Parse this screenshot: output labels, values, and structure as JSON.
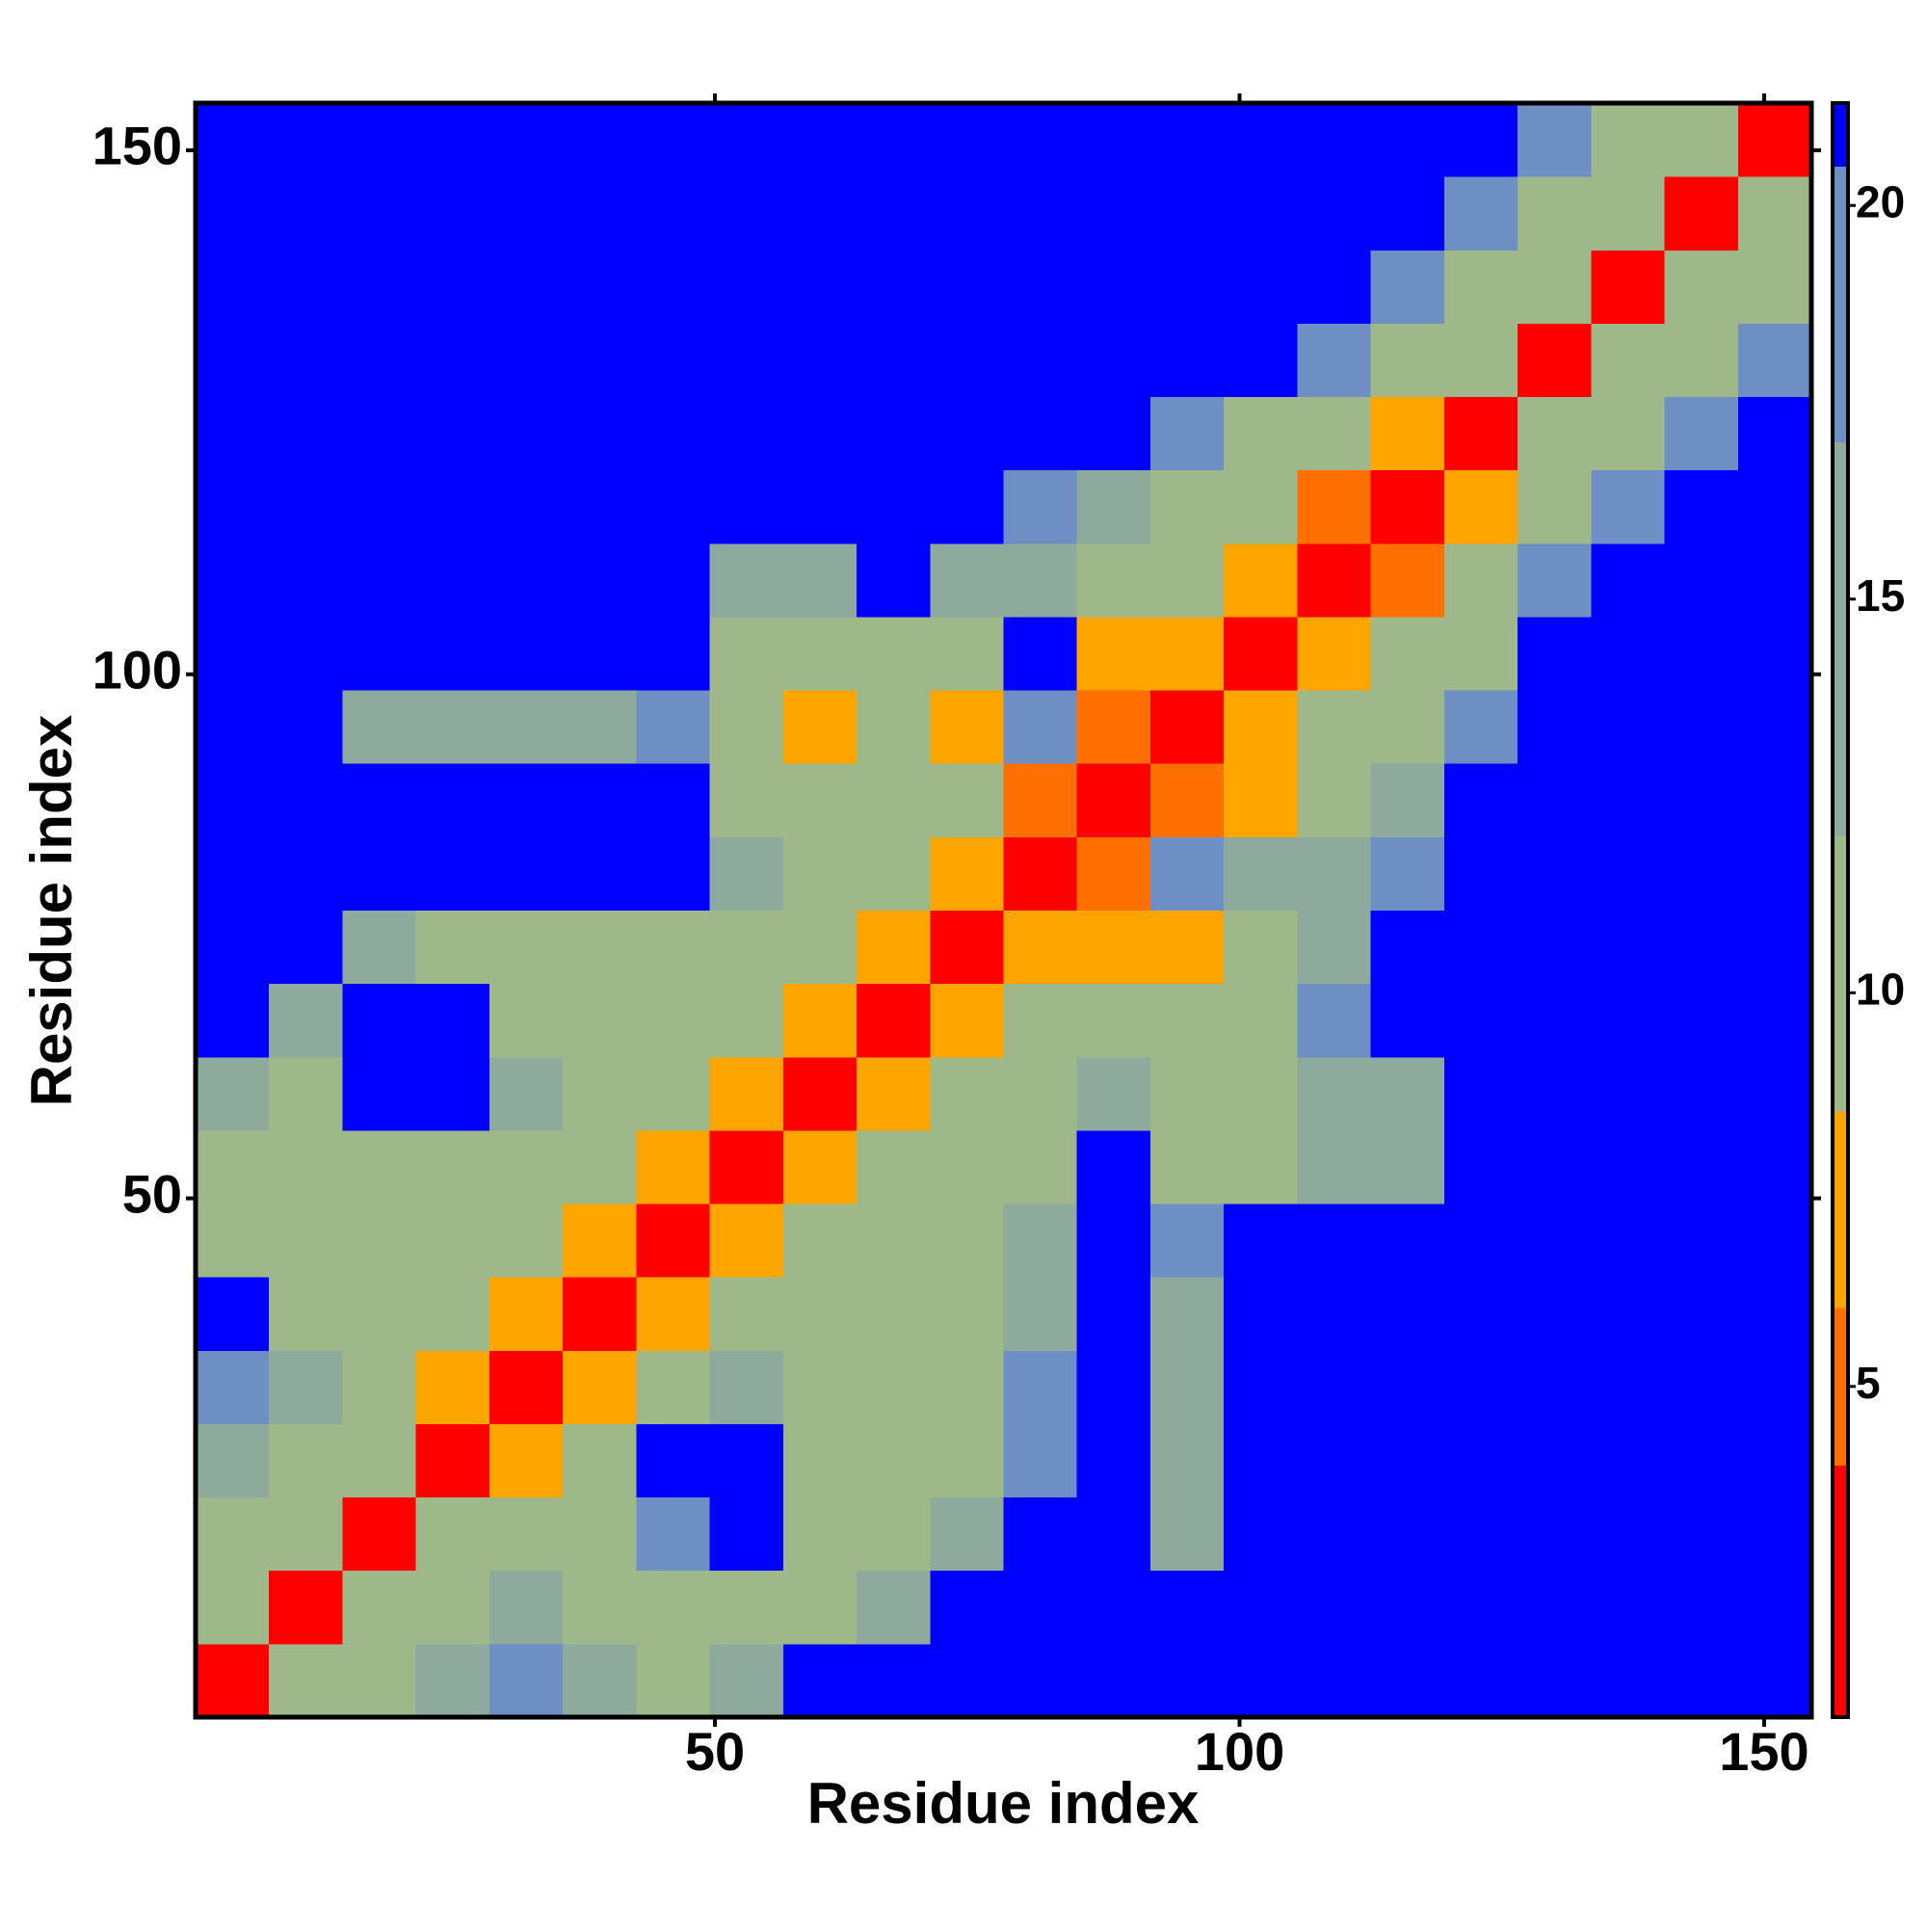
{
  "chart_data": {
    "type": "heatmap",
    "xlabel": "Residue index",
    "ylabel": "Residue index",
    "xlim": [
      0.5,
      154.5
    ],
    "ylim": [
      0.5,
      154.5
    ],
    "xticks": [
      50,
      100,
      150
    ],
    "yticks": [
      50,
      100,
      150
    ],
    "x_edges": [
      0.5,
      7.5,
      14.5,
      21.5,
      28.5,
      35.5,
      42.5,
      49.5,
      56.5,
      63.5,
      70.5,
      77.5,
      84.5,
      91.5,
      98.5,
      105.5,
      112.5,
      119.5,
      126.5,
      133.5,
      140.5,
      147.5,
      154.5
    ],
    "y_edges": [
      0.5,
      7.5,
      14.5,
      21.5,
      28.5,
      35.5,
      42.5,
      49.5,
      56.5,
      63.5,
      70.5,
      77.5,
      84.5,
      91.5,
      98.5,
      105.5,
      112.5,
      119.5,
      126.5,
      133.5,
      140.5,
      147.5,
      154.5
    ],
    "z": [
      [
        2,
        9,
        11,
        14,
        18,
        14,
        11,
        14,
        21,
        21,
        21,
        21,
        21,
        21,
        21,
        21,
        21,
        21,
        21,
        21,
        21,
        21
      ],
      [
        9,
        2,
        9,
        11,
        14,
        11,
        9,
        11,
        12,
        14,
        21,
        21,
        21,
        21,
        21,
        21,
        21,
        21,
        21,
        21,
        21,
        21
      ],
      [
        11,
        9,
        2,
        9,
        11,
        9,
        18,
        21,
        11,
        11,
        14,
        21,
        21,
        14,
        21,
        21,
        21,
        21,
        21,
        21,
        21,
        21
      ],
      [
        14,
        11,
        9,
        2,
        7,
        9,
        21,
        21,
        11,
        11,
        12,
        18,
        21,
        14,
        21,
        21,
        21,
        21,
        21,
        21,
        21,
        21
      ],
      [
        18,
        14,
        11,
        7,
        2,
        7,
        11,
        14,
        9,
        9,
        12,
        18,
        21,
        14,
        21,
        21,
        21,
        21,
        21,
        21,
        21,
        21
      ],
      [
        21,
        12,
        11,
        9,
        7,
        2,
        7,
        11,
        9,
        9,
        11,
        14,
        21,
        14,
        21,
        21,
        21,
        21,
        21,
        21,
        21,
        21
      ],
      [
        12,
        11,
        9,
        11,
        9,
        7,
        2,
        7,
        11,
        11,
        11,
        14,
        21,
        18,
        21,
        21,
        21,
        21,
        21,
        21,
        21,
        21
      ],
      [
        12,
        11,
        11,
        11,
        9,
        9,
        7,
        2,
        7,
        11,
        11,
        12,
        21,
        11,
        12,
        14,
        14,
        21,
        21,
        21,
        21,
        21
      ],
      [
        14,
        12,
        21,
        21,
        14,
        11,
        11,
        7,
        2,
        7,
        9,
        11,
        14,
        9,
        12,
        14,
        14,
        21,
        21,
        21,
        21,
        21
      ],
      [
        21,
        14,
        21,
        21,
        9,
        9,
        11,
        11,
        7,
        2,
        7,
        9,
        11,
        9,
        12,
        18,
        21,
        21,
        21,
        21,
        21,
        21
      ],
      [
        21,
        21,
        14,
        12,
        11,
        11,
        12,
        11,
        9,
        7,
        2,
        7,
        7,
        7,
        11,
        14,
        21,
        21,
        21,
        21,
        21,
        21
      ],
      [
        21,
        21,
        21,
        21,
        21,
        21,
        21,
        14,
        12,
        9,
        7,
        2,
        5,
        18,
        14,
        14,
        18,
        21,
        21,
        21,
        21,
        21
      ],
      [
        21,
        21,
        21,
        21,
        21,
        21,
        21,
        11,
        11,
        11,
        11,
        5,
        2,
        5,
        7,
        11,
        14,
        21,
        21,
        21,
        21,
        21
      ],
      [
        21,
        21,
        14,
        14,
        14,
        14,
        18,
        11,
        7,
        11,
        7,
        18,
        5,
        2,
        7,
        9,
        11,
        18,
        21,
        21,
        21,
        21
      ],
      [
        21,
        21,
        21,
        21,
        21,
        21,
        21,
        12,
        11,
        12,
        12,
        21,
        7,
        7,
        2,
        7,
        9,
        12,
        21,
        21,
        21,
        21
      ],
      [
        21,
        21,
        21,
        21,
        21,
        21,
        21,
        14,
        14,
        21,
        14,
        14,
        11,
        9,
        7,
        2,
        5,
        11,
        18,
        21,
        21,
        21
      ],
      [
        21,
        21,
        21,
        21,
        21,
        21,
        21,
        21,
        21,
        21,
        21,
        18,
        14,
        11,
        9,
        5,
        2,
        7,
        11,
        18,
        21,
        21
      ],
      [
        21,
        21,
        21,
        21,
        21,
        21,
        21,
        21,
        21,
        21,
        21,
        21,
        21,
        18,
        12,
        11,
        7,
        2,
        9,
        11,
        18,
        21
      ],
      [
        21,
        21,
        21,
        21,
        21,
        21,
        21,
        21,
        21,
        21,
        21,
        21,
        21,
        21,
        21,
        18,
        11,
        9,
        2,
        9,
        11,
        18
      ],
      [
        21,
        21,
        21,
        21,
        21,
        21,
        21,
        21,
        21,
        21,
        21,
        21,
        21,
        21,
        21,
        21,
        18,
        11,
        9,
        2,
        9,
        11
      ],
      [
        21,
        21,
        21,
        21,
        21,
        21,
        21,
        21,
        21,
        21,
        21,
        21,
        21,
        21,
        21,
        21,
        21,
        18,
        11,
        9,
        2,
        9
      ],
      [
        21,
        21,
        21,
        21,
        21,
        21,
        21,
        21,
        21,
        21,
        21,
        21,
        21,
        21,
        21,
        21,
        21,
        21,
        18,
        11,
        9,
        2
      ]
    ],
    "colorbar": {
      "lim": [
        0.8,
        21.3
      ],
      "ticks": [
        5,
        10,
        15,
        20
      ],
      "bounds": [
        0.8,
        4,
        6,
        8.5,
        12,
        17,
        20.5,
        21.3
      ],
      "colors": [
        "#ff0000",
        "#ff7000",
        "#ffa500",
        "#9fb88a",
        "#8eaa9c",
        "#6d8fc4",
        "#0000ff"
      ]
    }
  }
}
